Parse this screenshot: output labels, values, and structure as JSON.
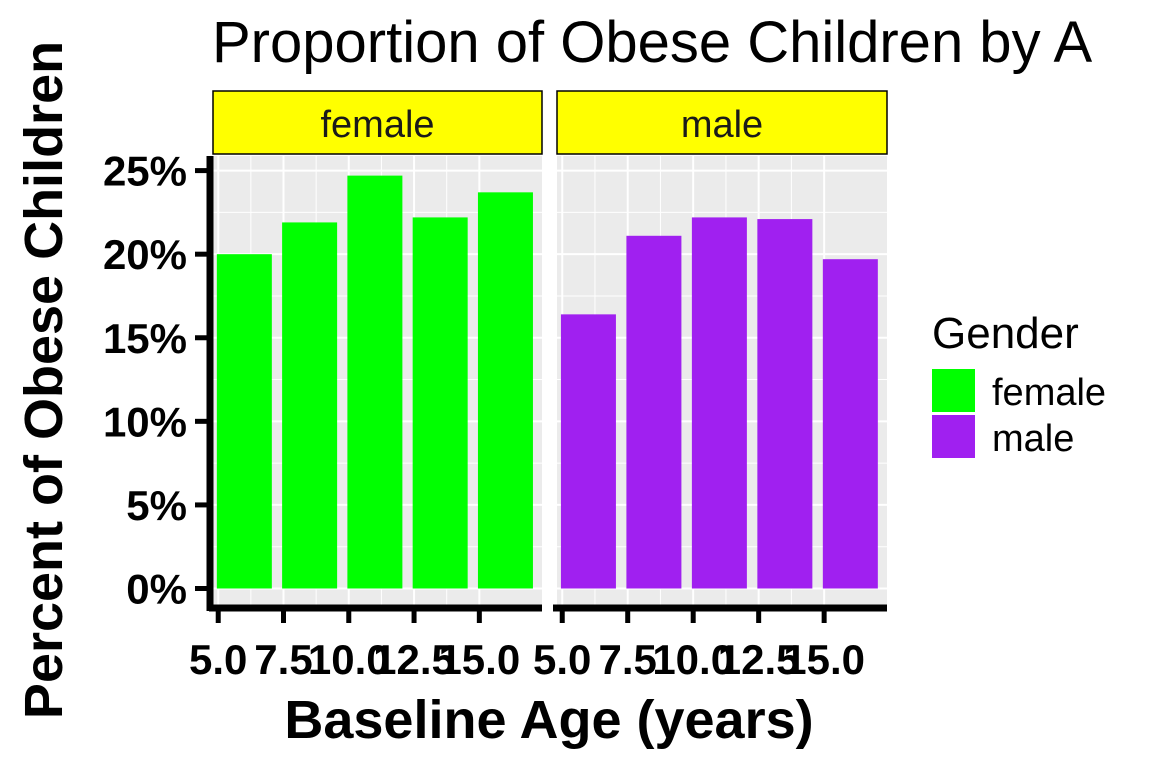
{
  "chart_data": {
    "type": "bar",
    "title": "Proportion of Obese Children by A",
    "xlabel": "Baseline Age (years)",
    "ylabel": "Percent of Obese Children",
    "x": [
      6,
      8.5,
      11,
      13.5,
      16
    ],
    "xlim": [
      4.8,
      17.4
    ],
    "x_ticks": [
      {
        "value": 5.0,
        "label": "5.0"
      },
      {
        "value": 7.5,
        "label": "7.5"
      },
      {
        "value": 10.0,
        "label": "10.0"
      },
      {
        "value": 12.5,
        "label": "12.5"
      },
      {
        "value": 15.0,
        "label": "15.0"
      }
    ],
    "ylim": [
      0,
      25
    ],
    "y_ticks": [
      {
        "value": 0,
        "label": "0%"
      },
      {
        "value": 5,
        "label": "5%"
      },
      {
        "value": 10,
        "label": "10%"
      },
      {
        "value": 15,
        "label": "15%"
      },
      {
        "value": 20,
        "label": "20%"
      },
      {
        "value": 25,
        "label": "25%"
      }
    ],
    "facets": [
      {
        "label": "female",
        "values": [
          20.0,
          21.9,
          24.7,
          22.2,
          23.7
        ]
      },
      {
        "label": "male",
        "values": [
          16.4,
          21.1,
          22.2,
          22.1,
          19.7
        ]
      }
    ],
    "legend": {
      "title": "Gender",
      "position": "right",
      "items": [
        {
          "label": "female",
          "color": "#00ff00"
        },
        {
          "label": "male",
          "color": "#a020f0"
        }
      ]
    },
    "colors": {
      "panel_background": "#ebebeb",
      "grid": "#ffffff",
      "strip_background": "#ffff00",
      "axis": "#000000"
    }
  }
}
